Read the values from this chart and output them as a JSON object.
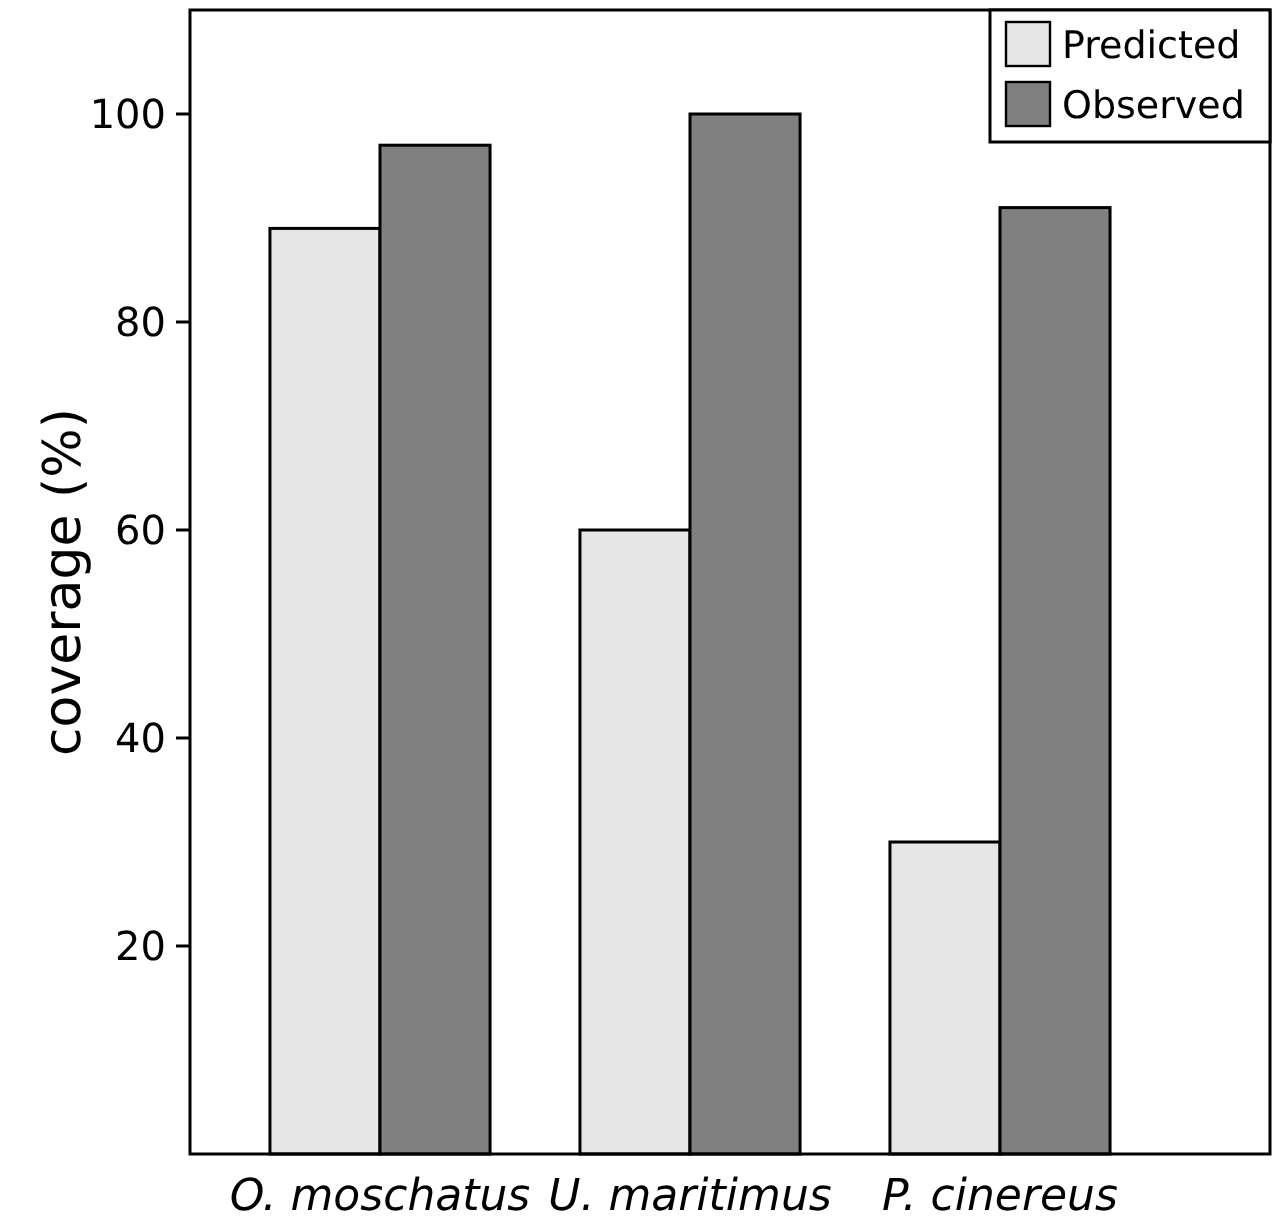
{
  "chart_data": {
    "type": "bar",
    "ylabel": "coverage (%)",
    "categories": [
      "O. moschatus",
      "U. maritimus",
      "P. cinereus"
    ],
    "series": [
      {
        "name": "Predicted",
        "color": "#e6e6e6",
        "values": [
          89,
          60,
          30
        ]
      },
      {
        "name": "Observed",
        "color": "#808080",
        "values": [
          97,
          100,
          91
        ]
      }
    ],
    "ylim": [
      0,
      110
    ],
    "yticks": [
      20,
      40,
      60,
      80,
      100
    ],
    "legend": "top right",
    "grid": false
  }
}
